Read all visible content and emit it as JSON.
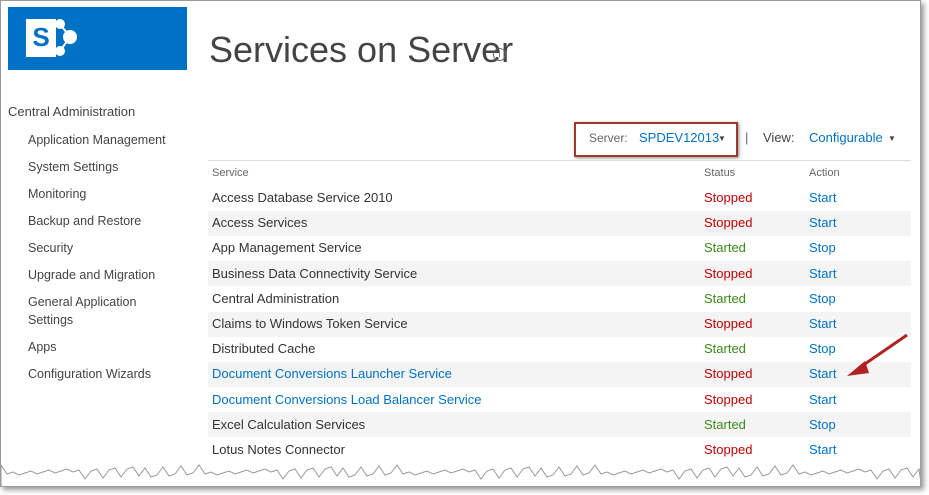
{
  "logo": {
    "letter": "S"
  },
  "header": {
    "title": "Services on Server",
    "info_icon": "i"
  },
  "nav": {
    "heading": "Central Administration",
    "items": [
      "Application Management",
      "System Settings",
      "Monitoring",
      "Backup and Restore",
      "Security",
      "Upgrade and Migration",
      "General Application Settings",
      "Apps",
      "Configuration Wizards"
    ]
  },
  "toolbar": {
    "server_label": "Server:",
    "server_value": "SPDEV12013",
    "separator": "|",
    "view_label": "View:",
    "view_value": "Configurable"
  },
  "table": {
    "columns": [
      "Service",
      "Status",
      "Action"
    ],
    "rows": [
      {
        "service": "Access Database Service 2010",
        "status": "Stopped",
        "action": "Start"
      },
      {
        "service": "Access Services",
        "status": "Stopped",
        "action": "Start"
      },
      {
        "service": "App Management Service",
        "status": "Started",
        "action": "Stop"
      },
      {
        "service": "Business Data Connectivity Service",
        "status": "Stopped",
        "action": "Start"
      },
      {
        "service": "Central Administration",
        "status": "Started",
        "action": "Stop"
      },
      {
        "service": "Claims to Windows Token Service",
        "status": "Stopped",
        "action": "Start"
      },
      {
        "service": "Distributed Cache",
        "status": "Started",
        "action": "Stop"
      },
      {
        "service": "Document Conversions Launcher Service",
        "status": "Stopped",
        "action": "Start",
        "service_color": "#0072c6"
      },
      {
        "service": "Document Conversions Load Balancer Service",
        "status": "Stopped",
        "action": "Start",
        "service_color": "#0072c6"
      },
      {
        "service": "Excel Calculation Services",
        "status": "Started",
        "action": "Stop"
      },
      {
        "service": "Lotus Notes Connector",
        "status": "Stopped",
        "action": "Start"
      }
    ]
  }
}
